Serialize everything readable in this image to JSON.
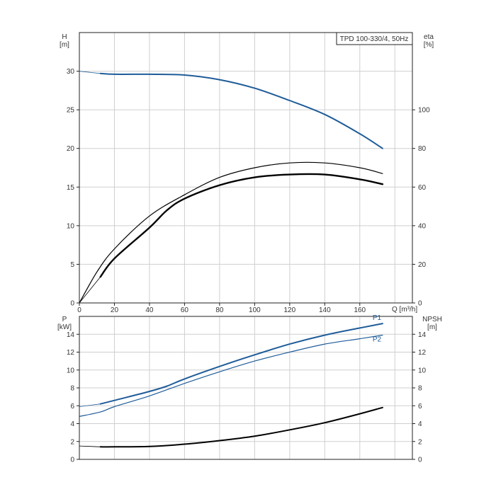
{
  "model_label": "TPD 100-330/4, 50Hz",
  "top_panel": {
    "left_axis_label": "H",
    "left_axis_unit": "[m]",
    "right_axis_label": "eta",
    "right_axis_unit": "[%]",
    "x_axis_label": "Q [m³/h]"
  },
  "bottom_panel": {
    "left_axis_label": "P",
    "left_axis_unit": "[kW]",
    "right_axis_label": "NPSH",
    "right_axis_unit": "[m]"
  },
  "colors": {
    "head_curve": "#1f5c99",
    "efficiency_curves": "#000000",
    "power_curves": "#1f5c99",
    "npsh_curve": "#000000",
    "grid": "#cfcfcf",
    "frame": "#222222"
  },
  "chart_data": [
    {
      "panel": "top",
      "type": "line",
      "xlabel": "Q [m³/h]",
      "ylabel": "H [m]",
      "y2label": "eta [%]",
      "xlim": [
        0,
        190
      ],
      "xticks": [
        0,
        20,
        40,
        60,
        80,
        100,
        120,
        140,
        160
      ],
      "ylim": [
        0,
        35
      ],
      "yticks": [
        0,
        5,
        10,
        15,
        20,
        25,
        30
      ],
      "y2lim": [
        0,
        140
      ],
      "y2ticks": [
        0,
        20,
        40,
        60,
        80,
        100
      ],
      "grid": true,
      "series": [
        {
          "axis": "left",
          "style": "head",
          "x": [
            0,
            12,
            20,
            40,
            60,
            80,
            100,
            120,
            140,
            160,
            173
          ],
          "y": [
            30.0,
            29.7,
            29.6,
            29.6,
            29.5,
            28.9,
            27.8,
            26.2,
            24.4,
            21.9,
            20.0
          ]
        },
        {
          "axis": "right",
          "style": "eta-upper",
          "x": [
            0,
            10,
            20,
            40,
            60,
            80,
            100,
            120,
            140,
            160,
            173
          ],
          "y": [
            0,
            16,
            28,
            45,
            56,
            65,
            70,
            72.5,
            72.5,
            70,
            67
          ]
        },
        {
          "axis": "right",
          "style": "eta-lower",
          "x": [
            0,
            12,
            20,
            40,
            50,
            60,
            80,
            100,
            120,
            140,
            160,
            173
          ],
          "y": [
            0,
            13.5,
            23,
            39,
            48,
            54,
            61,
            65,
            66.5,
            66.5,
            64,
            61.5
          ]
        }
      ]
    },
    {
      "panel": "bottom",
      "type": "line",
      "ylabel": "P [kW]",
      "y2label": "NPSH [m]",
      "xlim": [
        0,
        190
      ],
      "ylim": [
        0,
        16
      ],
      "yticks": [
        0,
        2,
        4,
        6,
        8,
        10,
        12,
        14
      ],
      "y2lim": [
        0,
        16
      ],
      "y2ticks": [
        0,
        2,
        4,
        6,
        8,
        10,
        12,
        14
      ],
      "grid": true,
      "series": [
        {
          "name": "P1",
          "axis": "left",
          "style": "p1",
          "x": [
            0,
            12,
            20,
            40,
            50,
            60,
            80,
            100,
            120,
            140,
            160,
            173
          ],
          "y": [
            5.9,
            6.2,
            6.6,
            7.6,
            8.2,
            9.0,
            10.4,
            11.7,
            12.9,
            13.9,
            14.7,
            15.2
          ]
        },
        {
          "name": "P2",
          "axis": "left",
          "style": "p2",
          "x": [
            0,
            12,
            20,
            40,
            60,
            80,
            100,
            120,
            140,
            160,
            173
          ],
          "y": [
            4.8,
            5.3,
            5.9,
            7.1,
            8.5,
            9.8,
            11.0,
            12.0,
            12.9,
            13.5,
            13.9
          ]
        },
        {
          "axis": "right",
          "style": "npsh",
          "x": [
            0,
            12,
            20,
            40,
            60,
            80,
            100,
            120,
            140,
            160,
            173
          ],
          "y": [
            1.5,
            1.4,
            1.4,
            1.45,
            1.7,
            2.1,
            2.6,
            3.3,
            4.1,
            5.1,
            5.8
          ]
        }
      ]
    }
  ]
}
